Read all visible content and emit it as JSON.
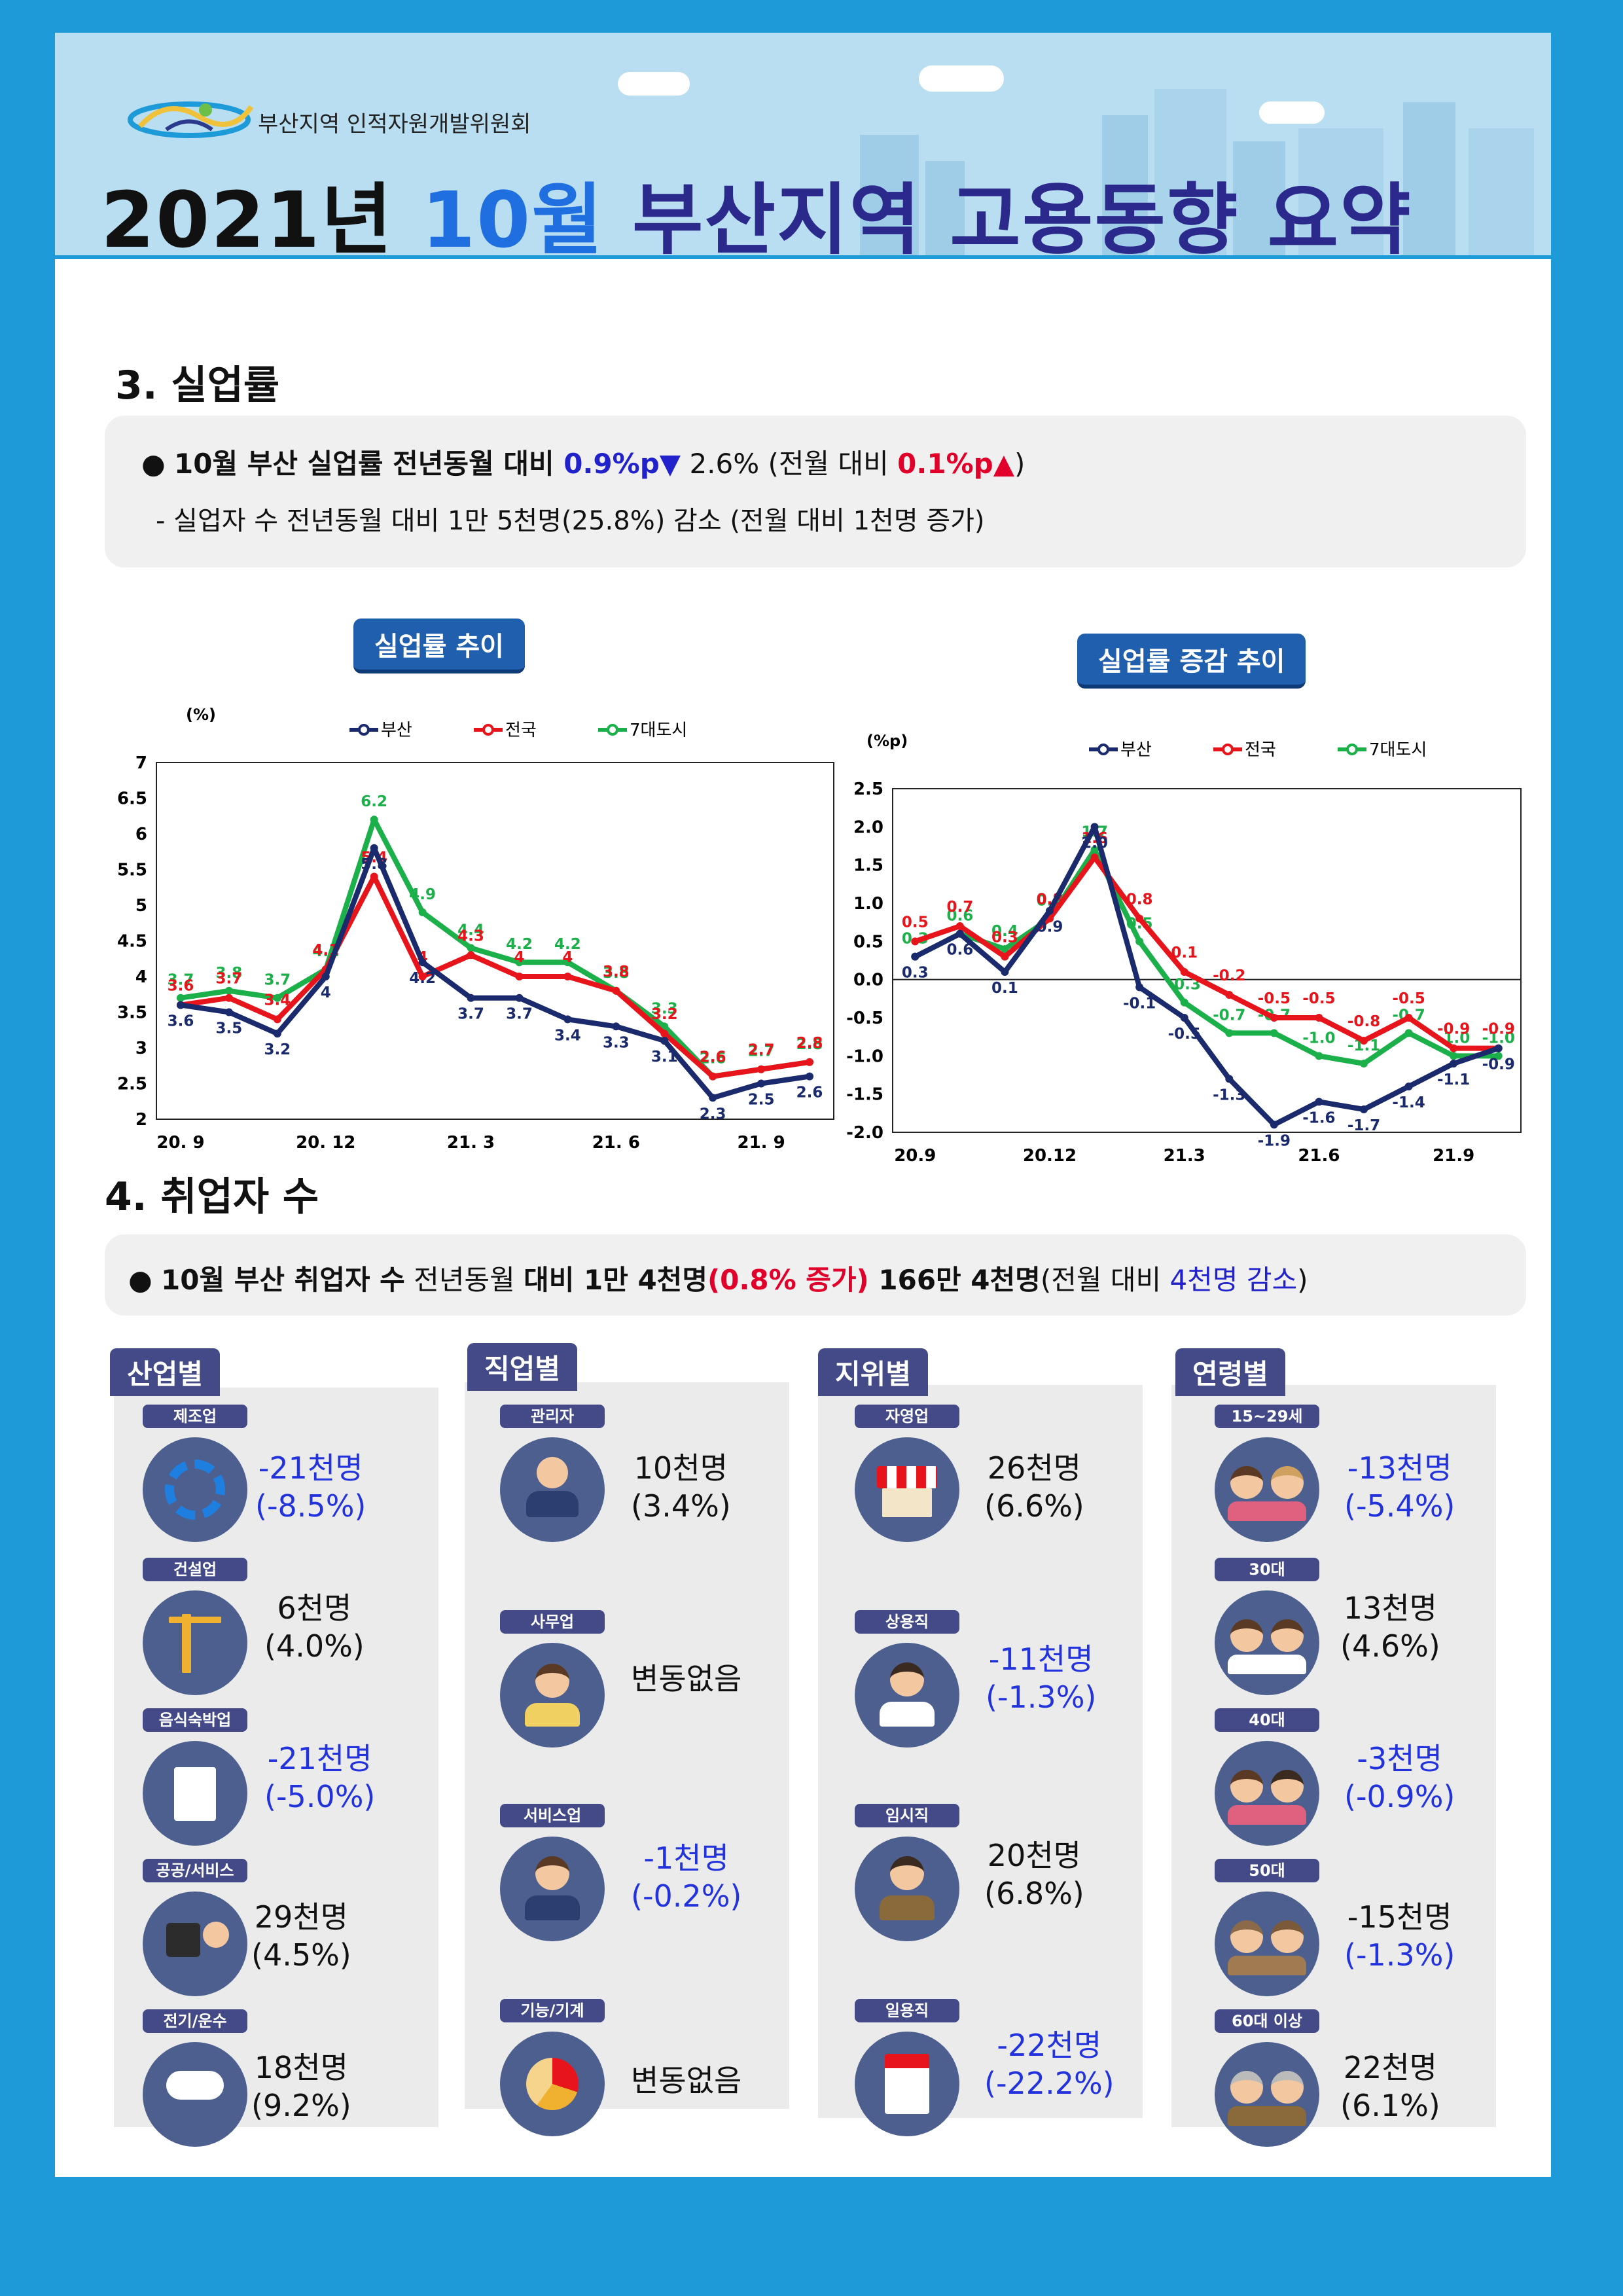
{
  "header": {
    "org": "부산지역 인적자원개발위원회",
    "title_year": "2021년",
    "title_month": "10월",
    "title_rest": "부산지역 고용동향 요약"
  },
  "sec3": {
    "title": "3. 실업률",
    "line1_a": "10월 부산 실업률 전년동월 대비 ",
    "line1_b": "0.9%p▼",
    "line1_c": " 2.6% (전월 대비 ",
    "line1_d": "0.1%p▲",
    "line1_e": ")",
    "line2": "-  실업자 수 전년동월 대비 1만 5천명(25.8%) 감소 (전월 대비 1천명 증가)"
  },
  "chart1_title": "실업률 추이",
  "chart2_title": "실업률 증감 추이",
  "colors": {
    "busan": "#1a2a6c",
    "national": "#e8141c",
    "seven": "#1bb04a"
  },
  "chart_data": [
    {
      "type": "line",
      "title": "실업률 추이",
      "ylabel": "(%)",
      "ylim": [
        2,
        7
      ],
      "yticks": [
        2,
        2.5,
        3,
        3.5,
        4,
        4.5,
        5,
        5.5,
        6,
        6.5,
        7
      ],
      "x": [
        "20.9",
        "20.10",
        "20.11",
        "20.12",
        "21.1",
        "21.2",
        "21.3",
        "21.4",
        "21.5",
        "21.6",
        "21.7",
        "21.8",
        "21.9",
        "21.10"
      ],
      "xtick_labels": [
        "20. 9",
        "",
        "",
        "20. 12",
        "",
        "",
        "21. 3",
        "",
        "",
        "21. 6",
        "",
        "",
        "21. 9",
        ""
      ],
      "legend": [
        "부산",
        "전국",
        "7대도시"
      ],
      "legend_position": "top",
      "series": [
        {
          "name": "부산",
          "values": [
            3.6,
            3.5,
            3.2,
            4.0,
            5.8,
            4.2,
            3.7,
            3.7,
            3.4,
            3.3,
            3.1,
            2.3,
            2.5,
            2.6
          ]
        },
        {
          "name": "전국",
          "values": [
            3.6,
            3.7,
            3.4,
            4.1,
            5.4,
            4.0,
            4.3,
            4.0,
            4.0,
            3.8,
            3.2,
            2.6,
            2.7,
            2.8
          ]
        },
        {
          "name": "7대도시",
          "values": [
            3.7,
            3.8,
            3.7,
            4.1,
            6.2,
            4.9,
            4.4,
            4.2,
            4.2,
            3.8,
            3.3,
            2.6,
            2.7,
            2.8
          ]
        }
      ]
    },
    {
      "type": "line",
      "title": "실업률 증감 추이",
      "ylabel": "(%p)",
      "ylim": [
        -2.0,
        2.5
      ],
      "yticks": [
        -2.0,
        -1.5,
        -1.0,
        -0.5,
        0.0,
        0.5,
        1.0,
        1.5,
        2.0,
        2.5
      ],
      "x": [
        "20.9",
        "20.10",
        "20.11",
        "20.12",
        "21.1",
        "21.2",
        "21.3",
        "21.4",
        "21.5",
        "21.6",
        "21.7",
        "21.8",
        "21.9",
        "21.10"
      ],
      "xtick_labels": [
        "20.9",
        "",
        "",
        "20.12",
        "",
        "",
        "21.3",
        "",
        "",
        "21.6",
        "",
        "",
        "21.9",
        ""
      ],
      "legend": [
        "부산",
        "전국",
        "7대도시"
      ],
      "legend_position": "top",
      "series": [
        {
          "name": "부산",
          "values": [
            0.3,
            0.6,
            0.1,
            0.9,
            2.0,
            -0.1,
            -0.5,
            -1.3,
            -1.9,
            -1.6,
            -1.7,
            -1.4,
            -1.1,
            -0.9
          ]
        },
        {
          "name": "전국",
          "values": [
            0.5,
            0.7,
            0.3,
            0.8,
            1.6,
            0.8,
            0.1,
            -0.2,
            -0.5,
            -0.5,
            -0.8,
            -0.5,
            -0.9,
            -0.9
          ]
        },
        {
          "name": "7대도시",
          "values": [
            0.3,
            0.6,
            0.4,
            0.8,
            1.7,
            0.5,
            -0.3,
            -0.7,
            -0.7,
            -1.0,
            -1.1,
            -0.7,
            -1.0,
            -1.0
          ]
        }
      ]
    }
  ],
  "sec4": {
    "title": "4. 취업자 수",
    "line_a": "10월 부산 취업자 수",
    "line_b": " 전년동월 ",
    "line_c": "대비 1만 4천명",
    "line_d": "(0.8% 증가)",
    "line_e": " 166만 4천명",
    "line_f": "(전월 대비 ",
    "line_g": "4천명 감소",
    "line_h": ")"
  },
  "panels": [
    {
      "tag": "산업별",
      "items": [
        {
          "label": "제조업",
          "v1": "-21천명",
          "v2": "(-8.5%)",
          "neg": true,
          "icon": "gear-icon"
        },
        {
          "label": "건설업",
          "v1": "6천명",
          "v2": "(4.0%)",
          "neg": false,
          "icon": "crane-icon"
        },
        {
          "label": "음식숙박업",
          "v1": "-21천명",
          "v2": "(-5.0%)",
          "neg": true,
          "icon": "building-icon"
        },
        {
          "label": "공공/서비스",
          "v1": "29천명",
          "v2": "(4.5%)",
          "neg": false,
          "icon": "service-desk-icon"
        },
        {
          "label": "전기/운수",
          "v1": "18천명",
          "v2": "(9.2%)",
          "neg": false,
          "icon": "cloud-network-icon"
        }
      ]
    },
    {
      "tag": "직업별",
      "items": [
        {
          "label": "관리자",
          "v1": "10천명",
          "v2": "(3.4%)",
          "neg": false,
          "icon": "manager-icon"
        },
        {
          "label": "사무업",
          "v1": "변동없음",
          "v2": "",
          "neg": false,
          "icon": "office-worker-icon"
        },
        {
          "label": "서비스업",
          "v1": "-1천명",
          "v2": "(-0.2%)",
          "neg": true,
          "icon": "service-worker-icon"
        },
        {
          "label": "기능/기계",
          "v1": "변동없음",
          "v2": "",
          "neg": false,
          "icon": "machine-gear-icon"
        }
      ]
    },
    {
      "tag": "지위별",
      "items": [
        {
          "label": "자영업",
          "v1": "26천명",
          "v2": "(6.6%)",
          "neg": false,
          "icon": "shop-icon"
        },
        {
          "label": "상용직",
          "v1": "-11천명",
          "v2": "(-1.3%)",
          "neg": true,
          "icon": "regular-worker-icon"
        },
        {
          "label": "임시직",
          "v1": "20천명",
          "v2": "(6.8%)",
          "neg": false,
          "icon": "temp-worker-icon"
        },
        {
          "label": "일용직",
          "v1": "-22천명",
          "v2": "(-22.2%)",
          "neg": true,
          "icon": "job-document-icon"
        }
      ]
    },
    {
      "tag": "연령별",
      "items": [
        {
          "label": "15~29세",
          "v1": "-13천명",
          "v2": "(-5.4%)",
          "neg": true,
          "icon": "youth-couple-icon"
        },
        {
          "label": "30대",
          "v1": "13천명",
          "v2": "(4.6%)",
          "neg": false,
          "icon": "thirties-couple-icon"
        },
        {
          "label": "40대",
          "v1": "-3천명",
          "v2": "(-0.9%)",
          "neg": true,
          "icon": "forties-couple-icon"
        },
        {
          "label": "50대",
          "v1": "-15천명",
          "v2": "(-1.3%)",
          "neg": false,
          "icon": "fifties-couple-icon"
        },
        {
          "label": "60대 이상",
          "v1": "22천명",
          "v2": "(6.1%)",
          "neg": false,
          "icon": "seniors-couple-icon"
        }
      ]
    }
  ]
}
